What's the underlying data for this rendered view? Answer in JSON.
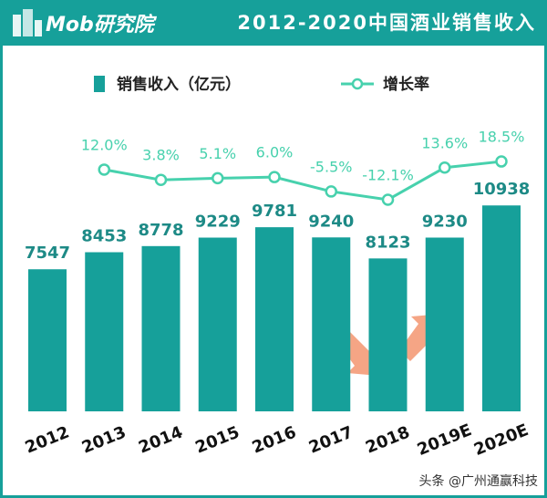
{
  "chart_data": {
    "type": "bar",
    "logo": "Mob研究院",
    "title": "2012-2020中国酒业销售收入",
    "watermark": "头条 @广州通赢科技",
    "categories": [
      "2012",
      "2013",
      "2014",
      "2015",
      "2016",
      "2017",
      "2018",
      "2019E",
      "2020E"
    ],
    "series": [
      {
        "name": "销售收入（亿元）",
        "type": "bar",
        "color": "#16a09a",
        "values": [
          7547,
          8453,
          8778,
          9229,
          9781,
          9240,
          8123,
          9230,
          10938
        ]
      },
      {
        "name": "增长率",
        "type": "line",
        "color": "#47d1ad",
        "values": [
          null,
          12.0,
          3.8,
          5.1,
          6.0,
          -5.5,
          -12.1,
          13.6,
          18.5
        ],
        "value_labels": [
          null,
          "12.0%",
          "3.8%",
          "5.1%",
          "6.0%",
          "-5.5%",
          "-12.1%",
          "13.6%",
          "18.5%"
        ]
      }
    ]
  }
}
